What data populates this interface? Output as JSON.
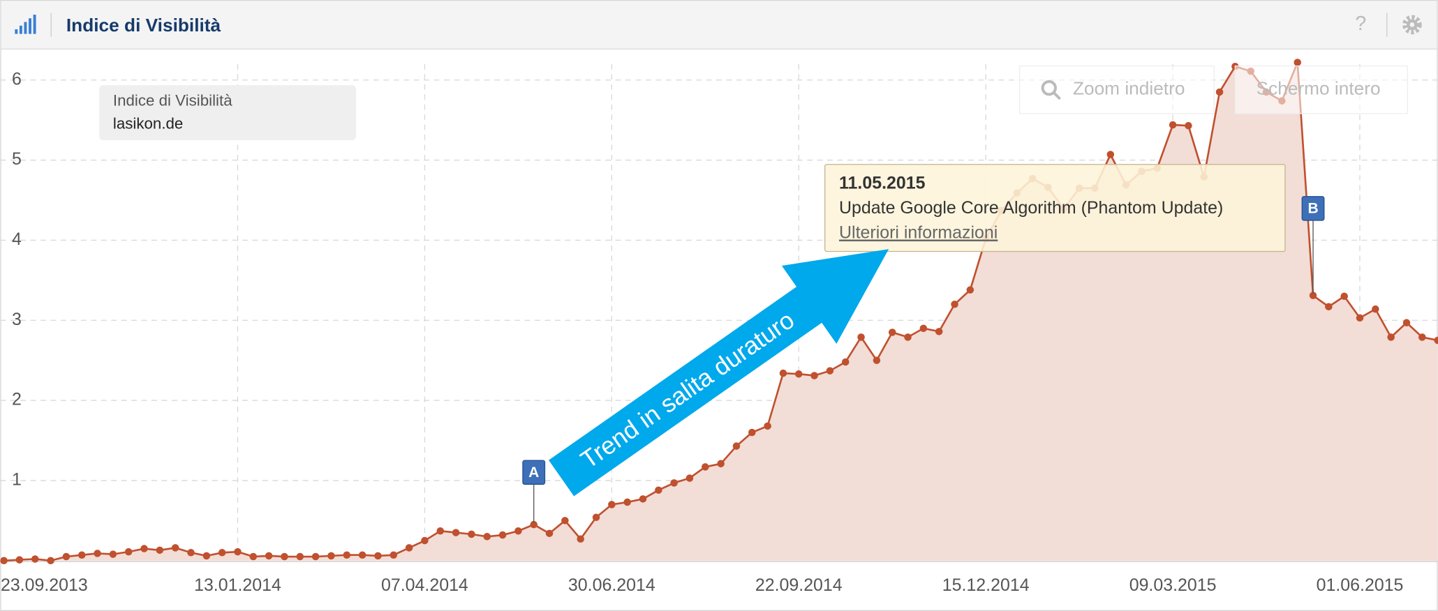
{
  "header_title": "Indice di Visibilità",
  "buttons": [
    "Zoom indietro",
    "Schermo intero"
  ],
  "help": "?",
  "chart_data": {
    "type": "area",
    "legend_title": "Indice di Visibilità",
    "x": [
      "30.09.2013",
      "07.10.2013",
      "14.10.2013",
      "21.10.2013",
      "28.10.2013",
      "04.11.2013",
      "11.11.2013",
      "18.11.2013",
      "25.11.2013",
      "02.12.2013",
      "09.12.2013",
      "16.12.2013",
      "23.12.2013",
      "30.12.2013",
      "06.01.2014",
      "13.01.2014",
      "20.01.2014",
      "27.01.2014",
      "03.02.2014",
      "10.02.2014",
      "17.02.2014",
      "24.02.2014",
      "03.03.2014",
      "10.03.2014",
      "17.03.2014",
      "24.03.2014",
      "31.03.2014",
      "07.04.2014",
      "14.04.2014",
      "21.04.2014",
      "28.04.2014",
      "05.05.2014",
      "12.05.2014",
      "19.05.2014",
      "26.05.2014",
      "02.06.2014",
      "09.06.2014",
      "16.06.2014",
      "23.06.2014",
      "30.06.2014",
      "07.07.2014",
      "14.07.2014",
      "21.07.2014",
      "28.07.2014",
      "04.08.2014",
      "11.08.2014",
      "18.08.2014",
      "25.08.2014",
      "01.09.2014",
      "08.09.2014",
      "15.09.2014",
      "22.09.2014",
      "29.09.2014",
      "06.10.2014",
      "13.10.2014",
      "20.10.2014",
      "27.10.2014",
      "03.11.2014",
      "10.11.2014",
      "17.11.2014",
      "24.11.2014",
      "01.12.2014",
      "08.12.2014",
      "15.12.2014",
      "22.12.2014",
      "29.12.2014",
      "05.01.2015",
      "12.01.2015",
      "19.01.2015",
      "26.01.2015",
      "02.02.2015",
      "09.02.2015",
      "16.02.2015",
      "23.02.2015",
      "02.03.2015",
      "09.03.2015",
      "16.03.2015",
      "23.03.2015",
      "30.03.2015",
      "06.04.2015",
      "13.04.2015",
      "20.04.2015",
      "27.04.2015",
      "04.05.2015",
      "11.05.2015",
      "18.05.2015",
      "25.05.2015",
      "01.06.2015",
      "08.06.2015",
      "15.06.2015",
      "22.06.2015",
      "29.06.2015",
      "06.07.2015"
    ],
    "series": [
      {
        "name": "lasikon.de",
        "color": "#c0502e",
        "fill": "#f2ddd7",
        "values": [
          0.0,
          0.01,
          0.02,
          0.0,
          0.05,
          0.07,
          0.09,
          0.08,
          0.11,
          0.15,
          0.13,
          0.16,
          0.1,
          0.06,
          0.1,
          0.11,
          0.05,
          0.06,
          0.05,
          0.05,
          0.05,
          0.06,
          0.07,
          0.07,
          0.06,
          0.07,
          0.16,
          0.25,
          0.37,
          0.35,
          0.33,
          0.3,
          0.32,
          0.37,
          0.45,
          0.34,
          0.5,
          0.27,
          0.54,
          0.7,
          0.73,
          0.77,
          0.88,
          0.97,
          1.03,
          1.17,
          1.21,
          1.43,
          1.6,
          1.68,
          2.34,
          2.33,
          2.31,
          2.37,
          2.48,
          2.79,
          2.5,
          2.85,
          2.79,
          2.9,
          2.86,
          3.2,
          3.38,
          4.02,
          4.37,
          4.59,
          4.77,
          4.66,
          4.39,
          4.65,
          4.65,
          5.07,
          4.69,
          4.86,
          4.9,
          5.44,
          5.43,
          4.79,
          5.85,
          6.17,
          6.11,
          5.85,
          5.74,
          6.22,
          3.31,
          3.17,
          3.3,
          3.03,
          3.14,
          2.79,
          2.97,
          2.79,
          2.75
        ]
      }
    ],
    "xlim": [
      "30.09.2013",
      "06.07.2015"
    ],
    "xticks": [
      "23.09.2013",
      "13.01.2014",
      "07.04.2014",
      "30.06.2014",
      "22.09.2014",
      "15.12.2014",
      "09.03.2015",
      "01.06.2015"
    ],
    "ylim": [
      0,
      6.37
    ],
    "yticks": [
      1,
      2,
      3,
      4,
      5,
      6
    ],
    "grid": true,
    "annotations": [
      {
        "label": "A",
        "x": "26.05.2014"
      },
      {
        "label": "B",
        "x": "11.05.2015",
        "text": "Update Google Core Algorithm (Phantom Update)",
        "link": "Ulteriori informazioni"
      }
    ],
    "arrow_text": "Trend in salita duraturo"
  }
}
